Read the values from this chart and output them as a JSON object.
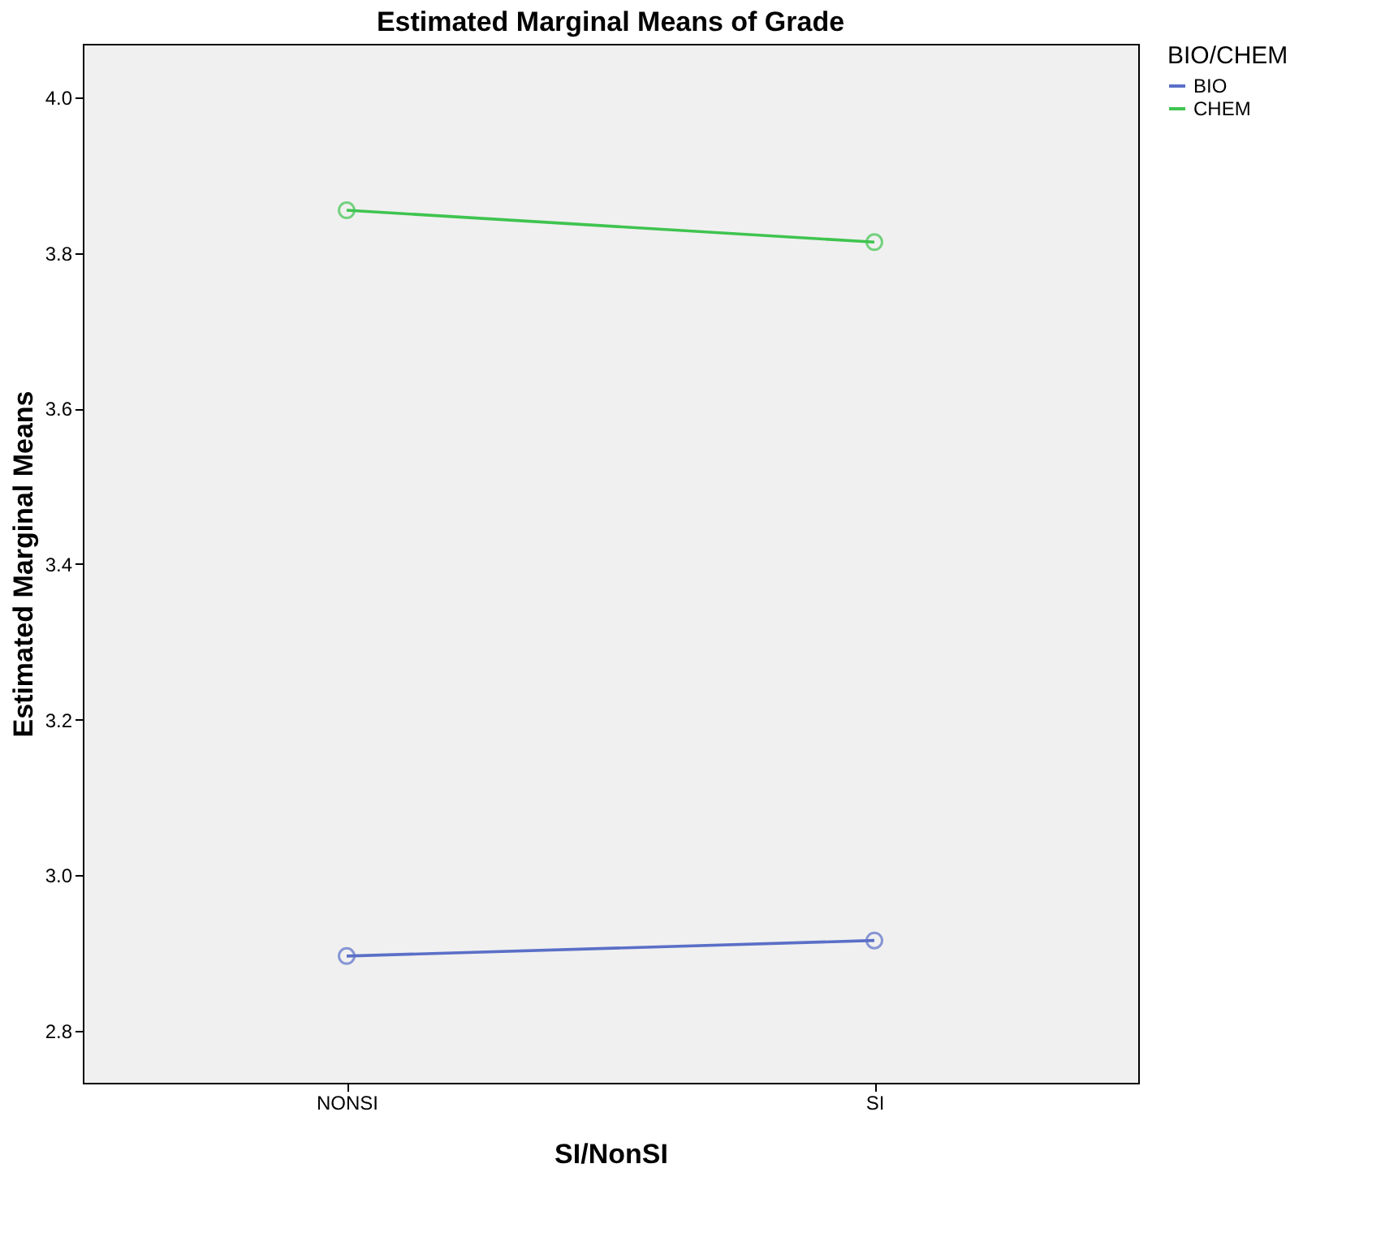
{
  "chart_data": {
    "type": "line",
    "title": "Estimated Marginal Means of Grade",
    "xlabel": "SI/NonSI",
    "ylabel": "Estimated Marginal Means",
    "legend_title": "BIO/CHEM",
    "categories": [
      "NONSI",
      "SI"
    ],
    "series": [
      {
        "name": "BIO",
        "color": "#5a6fc7",
        "values": [
          2.896,
          2.916
        ]
      },
      {
        "name": "CHEM",
        "color": "#3fc44f",
        "values": [
          3.855,
          3.814
        ]
      }
    ],
    "ylim": [
      2.733,
      4.069
    ],
    "yticks": [
      2.8,
      {
        "value": 3,
        "label": "3.0"
      },
      3.2,
      3.4,
      3.6,
      3.8,
      {
        "value": 4,
        "label": "4.0"
      }
    ],
    "grid": false,
    "legend": "top right",
    "marker": "circle",
    "line_style": "solid"
  }
}
